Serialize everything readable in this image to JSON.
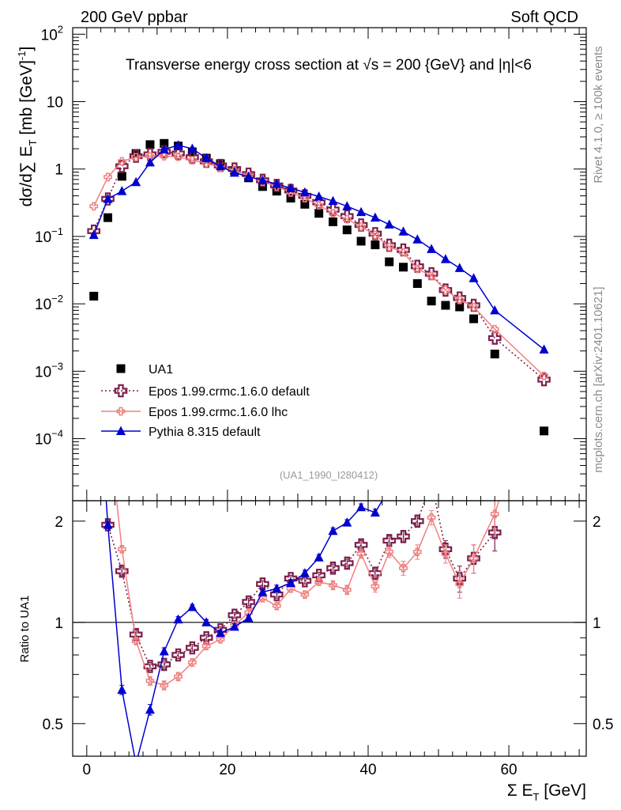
{
  "header": {
    "left": "200 GeV ppbar",
    "right": "Soft QCD",
    "title": "Transverse energy cross section at √s = 200 {GeV} and |η|<6",
    "ref_label": "(UA1_1990_I280412)",
    "side_top": "Rivet 4.1.0, ≥ 100k events",
    "side_bottom": "mcplots.cern.ch [arXiv:2401.10621]"
  },
  "chart_data": [
    {
      "type": "scatter",
      "panel": "main",
      "title": "Transverse energy cross section at √s = 200 {GeV} and |η|<6",
      "xlabel": "Σ E_T [GeV]",
      "ylabel": "dσ/d∑E_T [mb [GeV]^-1]",
      "yscale": "log",
      "xlim": [
        -2,
        71
      ],
      "ylim": [
        1.2e-05,
        125
      ],
      "y_ticks": [
        0.0001,
        0.001,
        0.01,
        0.1,
        1,
        10,
        100
      ],
      "y_tick_labels": [
        {
          "m": "10",
          "e": "−4"
        },
        {
          "m": "10",
          "e": "−3"
        },
        {
          "m": "10",
          "e": "−2"
        },
        {
          "m": "10",
          "e": "−1"
        },
        {
          "m": "1",
          "e": ""
        },
        {
          "m": "10",
          "e": ""
        },
        {
          "m": "10",
          "e": "2"
        }
      ],
      "legend_position": "lower-left",
      "series": [
        {
          "name": "UA1",
          "color": "#000000",
          "marker": "square",
          "line": "none",
          "x": [
            1,
            3,
            5,
            7,
            9,
            11,
            13,
            15,
            17,
            19,
            21,
            23,
            25,
            27,
            29,
            31,
            33,
            35,
            37,
            39,
            41,
            43,
            45,
            47,
            49,
            51,
            53,
            55,
            58,
            65
          ],
          "y": [
            0.013,
            0.19,
            0.78,
            1.7,
            2.3,
            2.4,
            2.2,
            1.8,
            1.45,
            1.2,
            0.95,
            0.74,
            0.55,
            0.47,
            0.37,
            0.3,
            0.22,
            0.165,
            0.125,
            0.085,
            0.075,
            0.042,
            0.035,
            0.02,
            0.011,
            0.0095,
            0.009,
            0.006,
            0.0018,
            0.00013
          ]
        },
        {
          "name": "Epos 1.99.crmc.1.6.0 default",
          "color": "#7b1f4b",
          "marker": "open-cross",
          "line": "dotted",
          "x": [
            1,
            3,
            5,
            7,
            9,
            11,
            13,
            15,
            17,
            19,
            21,
            23,
            25,
            27,
            29,
            31,
            33,
            35,
            37,
            39,
            41,
            43,
            45,
            47,
            49,
            51,
            53,
            55,
            58,
            65
          ],
          "y": [
            0.12,
            0.36,
            1.1,
            1.55,
            1.65,
            1.8,
            1.7,
            1.5,
            1.3,
            1.13,
            1.0,
            0.84,
            0.68,
            0.57,
            0.48,
            0.4,
            0.32,
            0.25,
            0.2,
            0.148,
            0.11,
            0.074,
            0.063,
            0.036,
            0.028,
            0.016,
            0.0122,
            0.0095,
            0.0031,
            0.00075
          ]
        },
        {
          "name": "Epos 1.99.crmc.1.6.0 lhc",
          "color": "#f08080",
          "marker": "small-cross",
          "line": "solid",
          "x": [
            1,
            3,
            5,
            7,
            9,
            11,
            13,
            15,
            17,
            19,
            21,
            23,
            25,
            27,
            29,
            31,
            33,
            35,
            37,
            39,
            41,
            43,
            45,
            47,
            49,
            51,
            53,
            55,
            58,
            65
          ],
          "y": [
            0.28,
            0.76,
            1.3,
            1.5,
            1.55,
            1.55,
            1.52,
            1.35,
            1.22,
            1.05,
            0.95,
            0.79,
            0.65,
            0.55,
            0.45,
            0.37,
            0.29,
            0.22,
            0.18,
            0.14,
            0.105,
            0.07,
            0.058,
            0.033,
            0.026,
            0.016,
            0.0115,
            0.009,
            0.0042,
            0.00085
          ]
        },
        {
          "name": "Pythia 8.315 default",
          "color": "#0000d0",
          "marker": "triangle",
          "line": "solid",
          "x": [
            1,
            3,
            5,
            7,
            9,
            11,
            13,
            15,
            17,
            19,
            21,
            23,
            25,
            27,
            29,
            31,
            33,
            35,
            37,
            39,
            41,
            43,
            45,
            47,
            49,
            51,
            53,
            55,
            58,
            65
          ],
          "y": [
            0.105,
            0.36,
            0.47,
            0.64,
            1.25,
            1.95,
            2.25,
            2.0,
            1.45,
            1.1,
            0.88,
            0.77,
            0.68,
            0.6,
            0.52,
            0.45,
            0.39,
            0.335,
            0.28,
            0.23,
            0.19,
            0.15,
            0.118,
            0.09,
            0.065,
            0.046,
            0.034,
            0.024,
            0.008,
            0.0021
          ]
        }
      ]
    },
    {
      "type": "line",
      "panel": "ratio",
      "xlabel": "Σ E_T [GeV]",
      "ylabel": "Ratio to UA1",
      "yscale": "log",
      "xlim": [
        -2,
        71
      ],
      "ylim": [
        0.4,
        2.3
      ],
      "x_ticks": [
        0,
        20,
        40,
        60
      ],
      "x_tick_labels": [
        "0",
        "20",
        "40",
        "60"
      ],
      "y_ticks": [
        0.5,
        1,
        2
      ],
      "y_tick_labels": [
        "0.5",
        "1",
        "2"
      ],
      "reference_line": 1,
      "series": [
        {
          "name": "Epos 1.99.crmc.1.6.0 default",
          "color": "#7b1f4b",
          "marker": "open-cross",
          "line": "dotted",
          "x": [
            3,
            5,
            7,
            9,
            11,
            13,
            15,
            17,
            19,
            21,
            23,
            25,
            27,
            29,
            31,
            33,
            35,
            37,
            39,
            41,
            43,
            45,
            47,
            49,
            51,
            53,
            55,
            58
          ],
          "y": [
            1.95,
            1.42,
            0.92,
            0.74,
            0.75,
            0.8,
            0.84,
            0.9,
            0.95,
            1.05,
            1.15,
            1.3,
            1.21,
            1.35,
            1.33,
            1.38,
            1.45,
            1.5,
            1.7,
            1.4,
            1.75,
            1.8,
            2.0,
            2.6,
            1.65,
            1.35,
            1.55,
            1.85
          ],
          "err": [
            0.05,
            0.04,
            0.03,
            0.02,
            0.02,
            0.02,
            0.02,
            0.02,
            0.02,
            0.02,
            0.03,
            0.03,
            0.03,
            0.03,
            0.03,
            0.03,
            0.04,
            0.04,
            0.05,
            0.05,
            0.06,
            0.07,
            0.08,
            0.1,
            0.1,
            0.12,
            0.15,
            0.22
          ]
        },
        {
          "name": "Epos 1.99.crmc.1.6.0 lhc",
          "color": "#f08080",
          "marker": "small-cross",
          "line": "solid",
          "x": [
            3,
            5,
            7,
            9,
            11,
            13,
            15,
            17,
            19,
            21,
            23,
            25,
            27,
            29,
            31,
            33,
            35,
            37,
            39,
            41,
            43,
            45,
            47,
            49,
            51,
            53,
            55,
            58,
            65
          ],
          "y": [
            4.0,
            1.65,
            0.88,
            0.67,
            0.65,
            0.69,
            0.76,
            0.85,
            0.89,
            0.98,
            1.07,
            1.18,
            1.12,
            1.26,
            1.21,
            1.32,
            1.29,
            1.25,
            1.6,
            1.28,
            1.62,
            1.45,
            1.62,
            2.05,
            1.6,
            1.3,
            1.55,
            2.1,
            6.3
          ],
          "err": [
            0.1,
            0.04,
            0.02,
            0.02,
            0.02,
            0.02,
            0.02,
            0.02,
            0.02,
            0.02,
            0.03,
            0.03,
            0.03,
            0.03,
            0.03,
            0.03,
            0.04,
            0.04,
            0.05,
            0.05,
            0.06,
            0.07,
            0.08,
            0.1,
            0.1,
            0.12,
            0.15,
            0.2,
            0.5
          ]
        },
        {
          "name": "Pythia 8.315 default",
          "color": "#0000d0",
          "marker": "triangle",
          "line": "solid",
          "x": [
            1,
            3,
            5,
            7,
            9,
            11,
            13,
            15,
            17,
            19,
            21,
            23,
            25,
            27,
            29,
            31,
            33,
            35,
            37,
            39,
            41,
            43
          ],
          "y": [
            8.0,
            1.95,
            0.63,
            0.38,
            0.55,
            0.82,
            1.02,
            1.11,
            1.0,
            0.93,
            0.97,
            1.03,
            1.23,
            1.26,
            1.31,
            1.4,
            1.56,
            1.87,
            1.98,
            2.2,
            2.12,
            2.5
          ],
          "err": [
            0.2,
            0.05,
            0.02,
            0.02,
            0.02,
            0.02,
            0.02,
            0.02,
            0.02,
            0.02,
            0.02,
            0.02,
            0.03,
            0.03,
            0.03,
            0.03,
            0.03,
            0.04,
            0.04,
            0.05,
            0.05,
            0.06
          ]
        }
      ]
    }
  ]
}
